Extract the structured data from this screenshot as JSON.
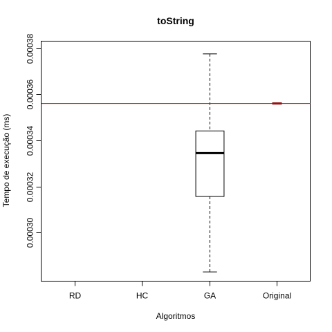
{
  "chart_data": {
    "type": "box",
    "title": "toString",
    "xlabel": "Algoritmos",
    "ylabel": "Tempo de execução (ms)",
    "categories": [
      "RD",
      "HC",
      "GA",
      "Original"
    ],
    "ylim": [
      0.000279,
      0.000383
    ],
    "yticks": [
      0.0003,
      0.00032,
      0.00034,
      0.00036,
      0.00038
    ],
    "ytick_labels": [
      "0.00030",
      "0.00032",
      "0.00034",
      "0.00036",
      "0.00038"
    ],
    "reference_line": {
      "y": 0.000356,
      "color": "#cc0000"
    },
    "boxes": [
      {
        "category": "RD",
        "present": false
      },
      {
        "category": "HC",
        "present": false
      },
      {
        "category": "GA",
        "present": true,
        "whisker_low": 0.000283,
        "q1": 0.0003157,
        "median": 0.0003345,
        "q3": 0.0003441,
        "whisker_high": 0.0003775
      },
      {
        "category": "Original",
        "present": true,
        "whisker_low": 0.000356,
        "q1": 0.000356,
        "median": 0.000356,
        "q3": 0.000356,
        "whisker_high": 0.000356,
        "color": "#8b0000"
      }
    ],
    "grid": false,
    "legend": "none"
  }
}
